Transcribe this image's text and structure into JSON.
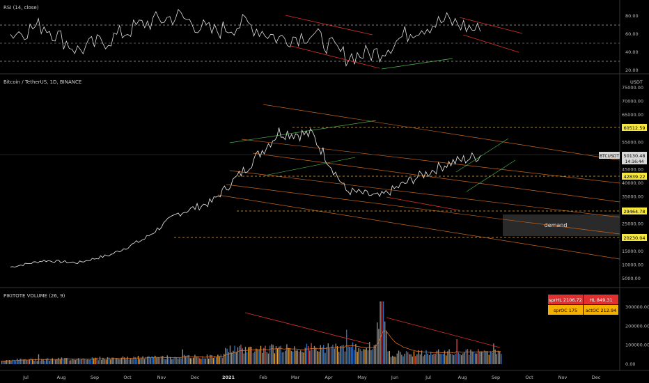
{
  "colors": {
    "background": "#000000",
    "text": "#cfcfcf",
    "grid": "#1a1a1a",
    "price": "#d9d9d9",
    "rsi": "#e0e0e0",
    "trend_red": "#e03030",
    "trend_green": "#4caf50",
    "trend_orange": "#c8661e",
    "level": "#e0b04a",
    "level_label_bg": "#f5e642",
    "demand_zone": "#2a2a2a",
    "table_red": "#e03030",
    "table_yellow": "#f5b000",
    "vol_gray": "#8a8a8a",
    "vol_blue": "#2a6fc0",
    "vol_orange": "#f0a020",
    "vol_red": "#d04040"
  },
  "rsi_panel": {
    "title": "RSI (14, close)",
    "ticks": [
      "80.00",
      "60.00",
      "40.00",
      "20.00"
    ]
  },
  "price_panel": {
    "title": "Bitcoin / TetherUS, 1D, BINANCE",
    "currency": "USDT",
    "ticks": [
      "75000.00",
      "70000.00",
      "65000.00",
      "60000.00",
      "55000.00",
      "50000.00",
      "45000.00",
      "40000.00",
      "35000.00",
      "30000.00",
      "25000.00",
      "20000.00",
      "15000.00",
      "10000.00",
      "5000.00"
    ],
    "current": {
      "symbol": "BTCUSDT",
      "price": "50130.48",
      "countdown": "14:16:44"
    },
    "levels": [
      "60512.59",
      "42839.22",
      "29464.78",
      "20230.04"
    ],
    "zone_label": "demand"
  },
  "volume_panel": {
    "title": "PIKITOTE VOLUME (26, 9)",
    "ticks": [
      "300000.00",
      "200000.00",
      "100000.00",
      "0.00"
    ],
    "stats": [
      {
        "label": "sprHL 2106.72",
        "color": "red"
      },
      {
        "label": "HL 849.31",
        "color": "red"
      },
      {
        "label": "sprOC 175",
        "color": "yellow"
      },
      {
        "label": "actOC 212.94",
        "color": "yellow"
      }
    ]
  },
  "time_axis": {
    "labels": [
      "Jul",
      "Aug",
      "Sep",
      "Oct",
      "Nov",
      "Dec",
      "2021",
      "Feb",
      "Mar",
      "Apr",
      "May",
      "Jun",
      "Jul",
      "Aug",
      "Sep",
      "Oct",
      "Nov",
      "Dec"
    ]
  },
  "chart_data": {
    "type": "line",
    "x": [
      "2020-07",
      "2020-08",
      "2020-09",
      "2020-10",
      "2020-11",
      "2020-12",
      "2021-01",
      "2021-02",
      "2021-03",
      "2021-04",
      "2021-05",
      "2021-06",
      "2021-07",
      "2021-08",
      "2021-09"
    ],
    "series": [
      {
        "name": "Bitcoin / TetherUS",
        "values": [
          9200,
          11600,
          10800,
          13800,
          19600,
          28900,
          33100,
          45200,
          58800,
          57700,
          37300,
          35000,
          41500,
          47100,
          50130
        ]
      },
      {
        "name": "RSI (14, close)",
        "values": [
          60,
          70,
          42,
          55,
          72,
          80,
          62,
          72,
          55,
          60,
          35,
          40,
          65,
          75,
          63
        ]
      }
    ],
    "ylim": [
      5000,
      75000
    ]
  }
}
